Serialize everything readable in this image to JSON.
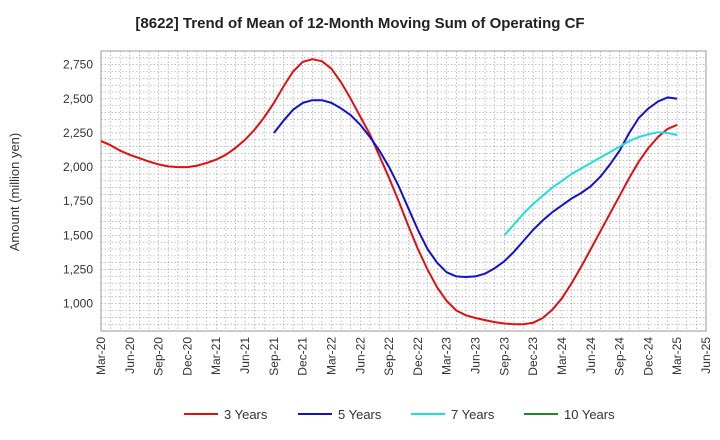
{
  "chart_data": {
    "type": "line",
    "title": "[8622]  Trend of Mean of 12-Month Moving Sum of Operating CF",
    "xlabel": "",
    "ylabel": "Amount (million yen)",
    "ylim": [
      800,
      2850
    ],
    "yticks": [
      1000,
      1250,
      1500,
      1750,
      2000,
      2250,
      2500,
      2750
    ],
    "ytick_labels": [
      "1,000",
      "1,250",
      "1,500",
      "1,750",
      "2,000",
      "2,250",
      "2,500",
      "2,750"
    ],
    "x_tick_labels": [
      "Mar-20",
      "Jun-20",
      "Sep-20",
      "Dec-20",
      "Mar-21",
      "Jun-21",
      "Sep-21",
      "Dec-21",
      "Mar-22",
      "Jun-22",
      "Sep-22",
      "Dec-22",
      "Mar-23",
      "Jun-23",
      "Sep-23",
      "Dec-23",
      "Mar-24",
      "Jun-24",
      "Sep-24",
      "Dec-24",
      "Mar-25",
      "Jun-25"
    ],
    "x_unit": "months since Mar-20",
    "xlim": [
      0,
      63
    ],
    "grid": true,
    "legend_position": "bottom",
    "series": [
      {
        "name": "3 Years",
        "color": "#dd1111",
        "x": [
          0,
          1,
          2,
          3,
          4,
          5,
          6,
          7,
          8,
          9,
          10,
          11,
          12,
          13,
          14,
          15,
          16,
          17,
          18,
          19,
          20,
          21,
          22,
          23,
          24,
          25,
          26,
          27,
          28,
          29,
          30,
          31,
          32,
          33,
          34,
          35,
          36,
          37,
          38,
          39,
          40,
          41,
          42,
          43,
          44,
          45,
          46,
          47,
          48,
          49,
          50,
          51,
          52,
          53,
          54,
          55,
          56,
          57,
          58,
          59,
          60
        ],
        "values": [
          2190,
          2160,
          2120,
          2090,
          2065,
          2040,
          2020,
          2005,
          2000,
          2000,
          2010,
          2030,
          2055,
          2090,
          2140,
          2200,
          2275,
          2365,
          2470,
          2590,
          2700,
          2770,
          2790,
          2775,
          2720,
          2620,
          2500,
          2370,
          2240,
          2080,
          1920,
          1750,
          1570,
          1400,
          1250,
          1120,
          1020,
          950,
          915,
          895,
          880,
          865,
          855,
          850,
          850,
          860,
          895,
          955,
          1040,
          1150,
          1270,
          1400,
          1530,
          1660,
          1790,
          1920,
          2040,
          2140,
          2220,
          2280,
          2310
        ]
      },
      {
        "name": "5 Years",
        "color": "#1111cc",
        "x": [
          18,
          19,
          20,
          21,
          22,
          23,
          24,
          25,
          26,
          27,
          28,
          29,
          30,
          31,
          32,
          33,
          34,
          35,
          36,
          37,
          38,
          39,
          40,
          41,
          42,
          43,
          44,
          45,
          46,
          47,
          48,
          49,
          50,
          51,
          52,
          53,
          54,
          55,
          56,
          57,
          58,
          59,
          60
        ],
        "values": [
          2250,
          2340,
          2420,
          2470,
          2490,
          2490,
          2470,
          2430,
          2380,
          2310,
          2220,
          2120,
          2000,
          1860,
          1700,
          1540,
          1400,
          1300,
          1230,
          1200,
          1195,
          1200,
          1220,
          1260,
          1310,
          1380,
          1460,
          1540,
          1610,
          1670,
          1720,
          1770,
          1810,
          1860,
          1930,
          2020,
          2120,
          2250,
          2360,
          2430,
          2480,
          2510,
          2500
        ]
      },
      {
        "name": "7 Years",
        "color": "#22dddd",
        "x": [
          42,
          43,
          44,
          45,
          46,
          47,
          48,
          49,
          50,
          51,
          52,
          53,
          54,
          55,
          56,
          57,
          58,
          59,
          60
        ],
        "values": [
          1500,
          1580,
          1660,
          1730,
          1790,
          1850,
          1900,
          1950,
          1990,
          2030,
          2070,
          2110,
          2150,
          2190,
          2220,
          2240,
          2255,
          2250,
          2235
        ]
      },
      {
        "name": "10 Years",
        "color": "#228822",
        "x": [],
        "values": []
      }
    ]
  }
}
